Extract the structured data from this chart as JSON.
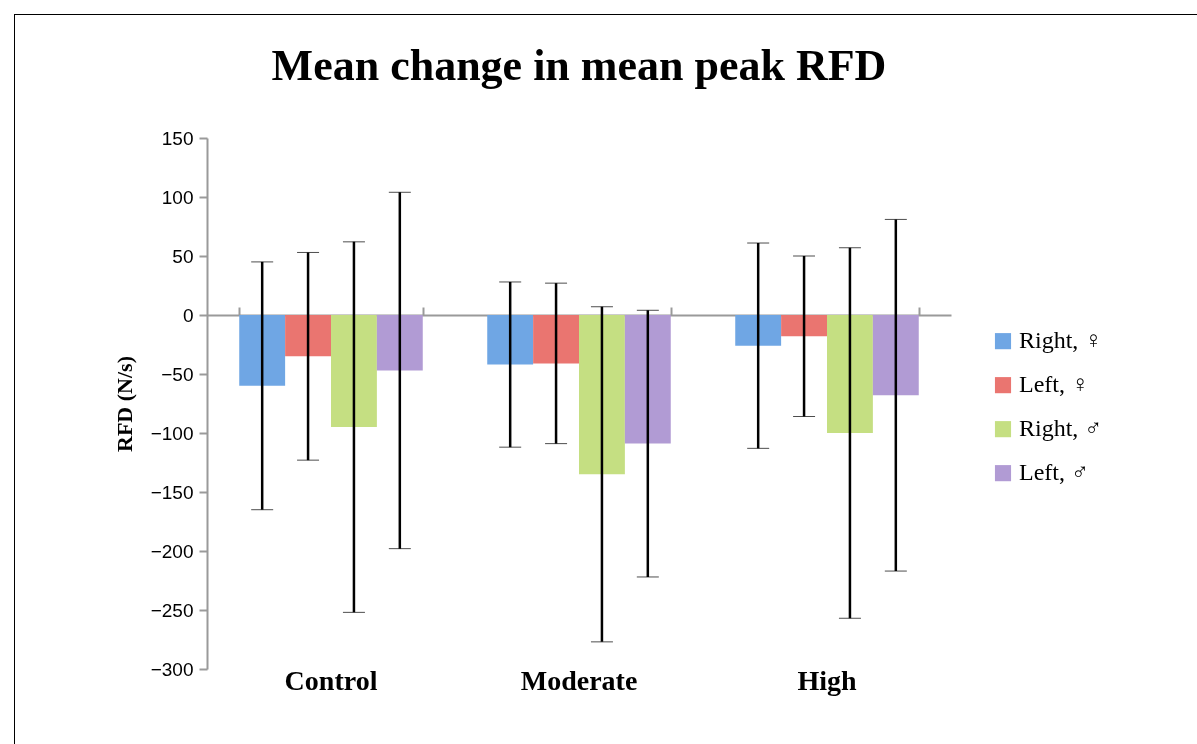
{
  "chart_data": {
    "type": "bar",
    "title": "Mean change in mean peak RFD",
    "ylabel": "RFD (N/s)",
    "categories": [
      "Control",
      "Moderate",
      "High"
    ],
    "series": [
      {
        "name": "Right, ♀",
        "color": "#6fa6e4",
        "values": [
          -60,
          -42,
          -26
        ],
        "errors": [
          105,
          70,
          87
        ]
      },
      {
        "name": "Left, ♀",
        "color": "#ea7570",
        "values": [
          -35,
          -41,
          -18
        ],
        "errors": [
          88,
          68,
          68
        ]
      },
      {
        "name": "Right, ♂",
        "color": "#c5df82",
        "values": [
          -95,
          -135,
          -100
        ],
        "errors": [
          157,
          142,
          157
        ]
      },
      {
        "name": "Left, ♂",
        "color": "#b19bd4",
        "values": [
          -47,
          -109,
          -68
        ],
        "errors": [
          151,
          113,
          149
        ]
      }
    ],
    "ylim": [
      -300,
      150
    ],
    "yticks": [
      -300,
      -250,
      -200,
      -150,
      -100,
      -50,
      0,
      50,
      100,
      150
    ],
    "legend": "right"
  }
}
